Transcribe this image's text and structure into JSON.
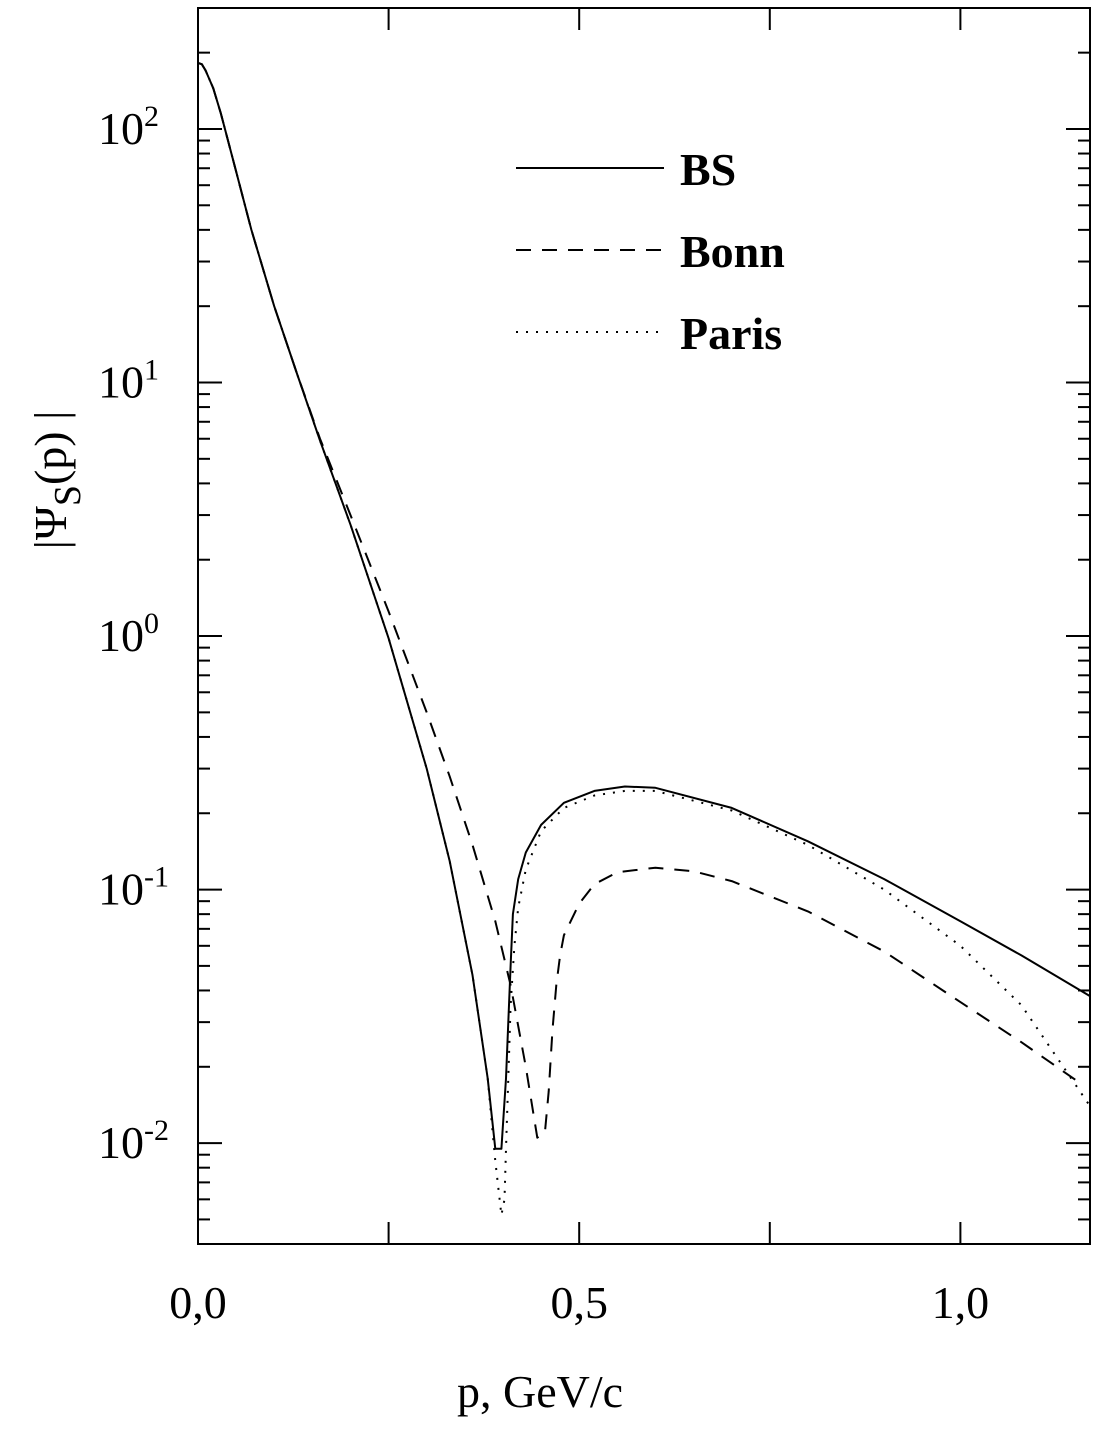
{
  "chart_data": {
    "type": "line",
    "xlabel": "p, GeV/c",
    "ylabel": "|Ψ",
    "ylabel_sub": "S",
    "ylabel_tail": "(p) |",
    "yscale": "log",
    "xlim": [
      0.0,
      1.17
    ],
    "ylim": [
      0.004,
      300
    ],
    "x_ticks": [
      {
        "value": 0.0,
        "label": "0,0"
      },
      {
        "value": 0.5,
        "label": "0,5"
      },
      {
        "value": 1.0,
        "label": "1,0"
      }
    ],
    "x_minor_ticks": [
      0.25,
      0.75
    ],
    "y_ticks": [
      {
        "value": 100,
        "base": "10",
        "exp": "2"
      },
      {
        "value": 10,
        "base": "10",
        "exp": "1"
      },
      {
        "value": 1,
        "base": "10",
        "exp": "0"
      },
      {
        "value": 0.1,
        "base": "10",
        "exp": "-1"
      },
      {
        "value": 0.01,
        "base": "10",
        "exp": "-2"
      }
    ],
    "grid": false,
    "legend_position": "top-right",
    "series": [
      {
        "name": "BS",
        "style": "solid",
        "x": [
          0.0,
          0.005,
          0.01,
          0.02,
          0.03,
          0.05,
          0.07,
          0.1,
          0.13,
          0.16,
          0.2,
          0.25,
          0.3,
          0.33,
          0.36,
          0.38,
          0.39,
          0.398,
          0.404,
          0.41,
          0.413,
          0.42,
          0.43,
          0.45,
          0.48,
          0.52,
          0.56,
          0.6,
          0.7,
          0.8,
          0.9,
          1.0,
          1.08,
          1.17
        ],
        "y": [
          182,
          180,
          170,
          145,
          115,
          68,
          40,
          20,
          10.8,
          5.9,
          2.75,
          0.98,
          0.3,
          0.13,
          0.046,
          0.018,
          0.0095,
          0.0095,
          0.018,
          0.05,
          0.08,
          0.11,
          0.14,
          0.18,
          0.22,
          0.245,
          0.255,
          0.252,
          0.21,
          0.155,
          0.11,
          0.075,
          0.055,
          0.038
        ]
      },
      {
        "name": "Bonn",
        "style": "dashed",
        "x": [
          0.0,
          0.005,
          0.01,
          0.02,
          0.03,
          0.05,
          0.07,
          0.1,
          0.13,
          0.16,
          0.2,
          0.25,
          0.3,
          0.33,
          0.36,
          0.39,
          0.41,
          0.43,
          0.445,
          0.455,
          0.46,
          0.465,
          0.47,
          0.475,
          0.48,
          0.5,
          0.52,
          0.55,
          0.6,
          0.65,
          0.7,
          0.8,
          0.9,
          1.0,
          1.08,
          1.16
        ],
        "y": [
          182,
          180,
          170,
          145,
          115,
          68,
          40,
          20,
          10.8,
          6.0,
          3.0,
          1.25,
          0.5,
          0.28,
          0.15,
          0.075,
          0.042,
          0.02,
          0.0105,
          0.011,
          0.016,
          0.028,
          0.042,
          0.055,
          0.066,
          0.088,
          0.105,
          0.117,
          0.122,
          0.118,
          0.108,
          0.082,
          0.057,
          0.036,
          0.025,
          0.017
        ]
      },
      {
        "name": "Paris",
        "style": "dotted",
        "x": [
          0.0,
          0.005,
          0.01,
          0.02,
          0.03,
          0.05,
          0.07,
          0.1,
          0.13,
          0.16,
          0.2,
          0.25,
          0.3,
          0.33,
          0.36,
          0.38,
          0.39,
          0.398,
          0.402,
          0.404,
          0.407,
          0.41,
          0.415,
          0.42,
          0.43,
          0.45,
          0.48,
          0.52,
          0.56,
          0.6,
          0.7,
          0.8,
          0.9,
          1.0,
          1.08,
          1.17
        ],
        "y": [
          182,
          180,
          170,
          145,
          115,
          68,
          40,
          20,
          10.8,
          5.9,
          2.75,
          0.98,
          0.3,
          0.13,
          0.046,
          0.018,
          0.0085,
          0.0052,
          0.006,
          0.0095,
          0.018,
          0.035,
          0.06,
          0.085,
          0.12,
          0.17,
          0.21,
          0.235,
          0.245,
          0.245,
          0.205,
          0.15,
          0.1,
          0.06,
          0.035,
          0.014
        ]
      }
    ]
  }
}
